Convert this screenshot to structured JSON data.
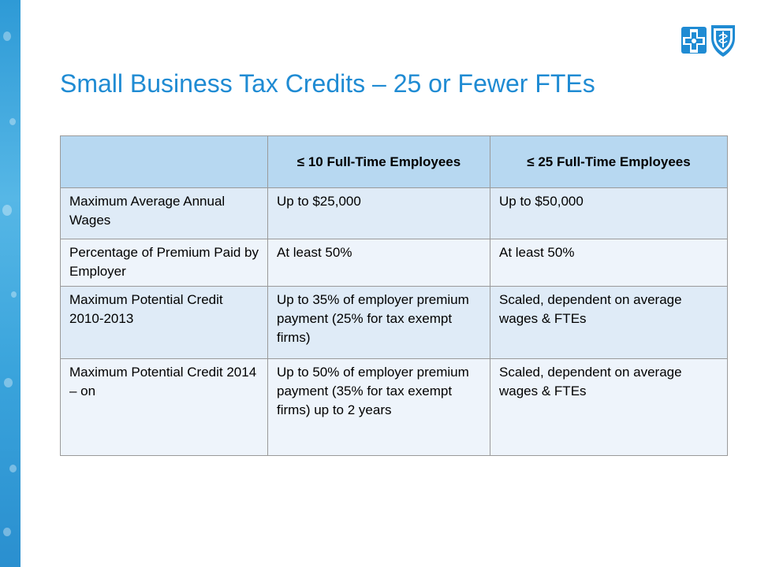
{
  "slide": {
    "title": "Small Business Tax Credits – 25 or Fewer FTEs",
    "logos": [
      {
        "name": "blue-cross-logo",
        "color": "#1f8bd3"
      },
      {
        "name": "blue-shield-logo",
        "color": "#1f8bd3"
      }
    ]
  },
  "table": {
    "headers": [
      "",
      "≤ 10 Full-Time Employees",
      "≤ 25 Full-Time Employees"
    ],
    "rows": [
      [
        "Maximum Average Annual Wages",
        "Up to $25,000",
        "Up to $50,000"
      ],
      [
        "Percentage of Premium Paid by Employer",
        "At least 50%",
        "At least 50%"
      ],
      [
        "Maximum Potential Credit 2010-2013",
        "Up to 35% of employer premium payment (25% for tax exempt firms)",
        "Scaled, dependent on average wages & FTEs"
      ],
      [
        "Maximum Potential Credit 2014 – on",
        "Up to 50% of employer premium payment (35% for tax exempt firms) up to 2 years",
        "Scaled, dependent on average wages & FTEs"
      ]
    ]
  },
  "colors": {
    "accent": "#1f8bd3",
    "header_bg": "#b7d8f1",
    "row_bg_light": "#eef4fb",
    "row_bg_dark": "#dfebf7",
    "side_strip": "#3aa4dc"
  }
}
